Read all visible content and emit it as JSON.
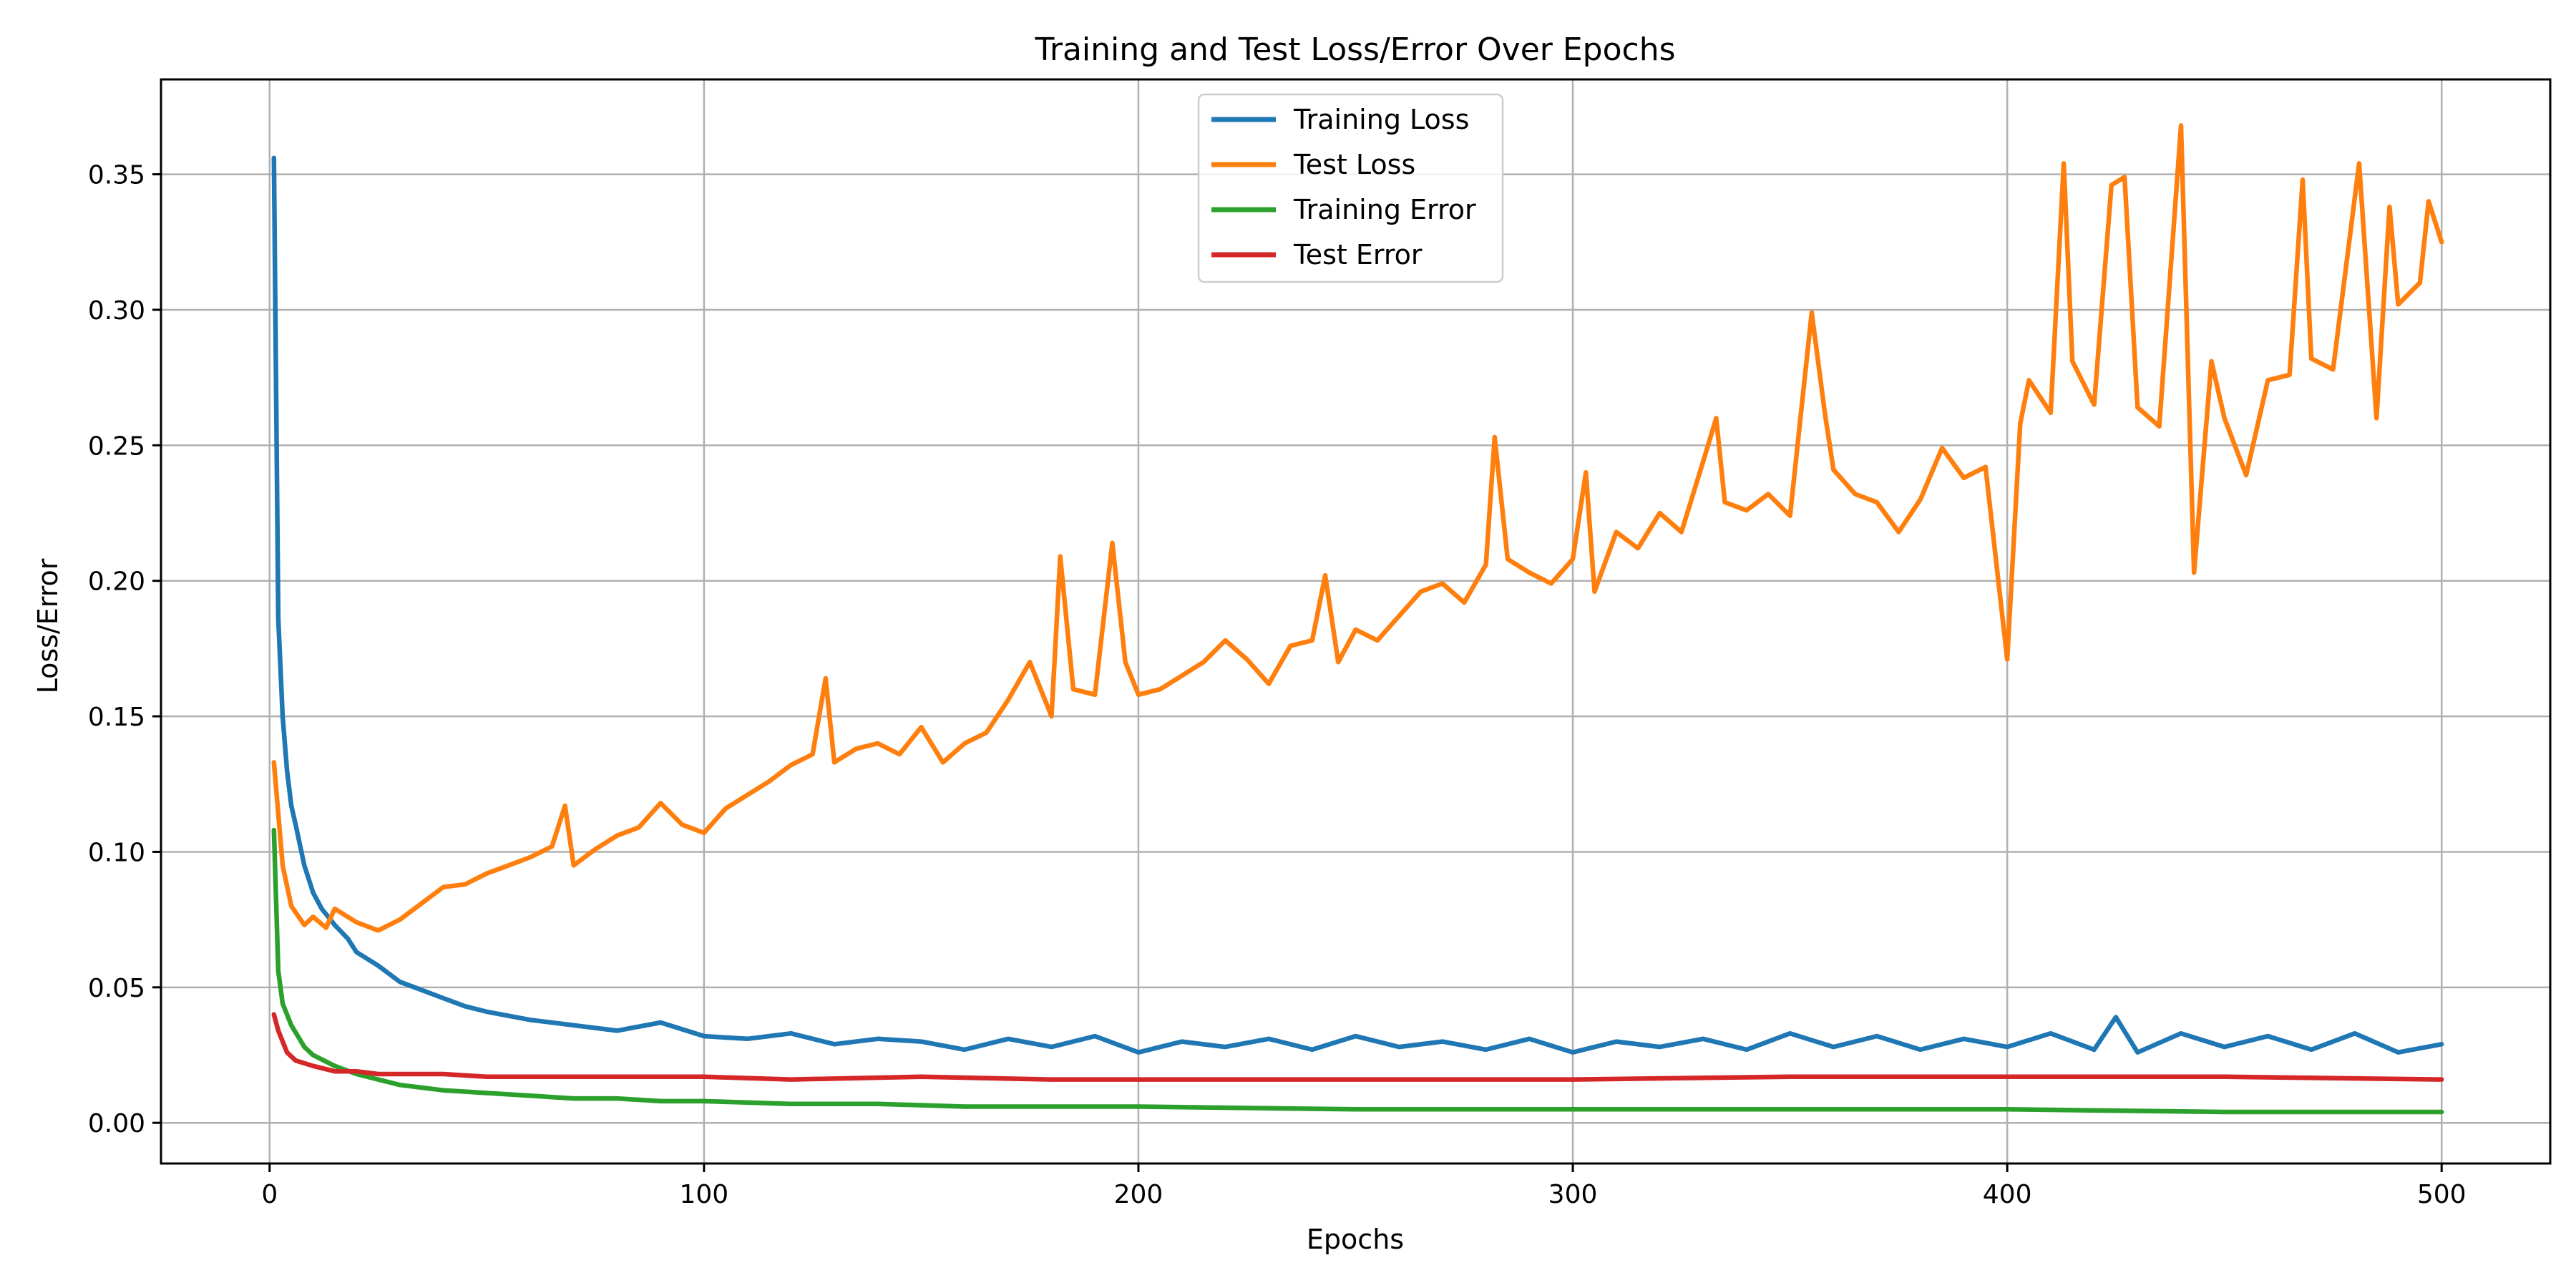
{
  "chart_data": {
    "type": "line",
    "title": "Training and Test Loss/Error Over Epochs",
    "xlabel": "Epochs",
    "ylabel": "Loss/Error",
    "xlim": [
      -25,
      525
    ],
    "ylim": [
      -0.015,
      0.385
    ],
    "xticks": [
      0,
      100,
      200,
      300,
      400,
      500
    ],
    "yticks": [
      0.0,
      0.05,
      0.1,
      0.15,
      0.2,
      0.25,
      0.3,
      0.35
    ],
    "ytick_labels": [
      "0.00",
      "0.05",
      "0.10",
      "0.15",
      "0.20",
      "0.25",
      "0.30",
      "0.35"
    ],
    "grid": true,
    "legend_position": "top-center",
    "series": [
      {
        "name": "Training Loss",
        "color": "#1f77b4",
        "points": [
          [
            1,
            0.356
          ],
          [
            2,
            0.186
          ],
          [
            3,
            0.15
          ],
          [
            4,
            0.13
          ],
          [
            5,
            0.117
          ],
          [
            6,
            0.11
          ],
          [
            8,
            0.095
          ],
          [
            10,
            0.085
          ],
          [
            12,
            0.079
          ],
          [
            15,
            0.073
          ],
          [
            18,
            0.068
          ],
          [
            20,
            0.063
          ],
          [
            25,
            0.058
          ],
          [
            30,
            0.052
          ],
          [
            35,
            0.049
          ],
          [
            40,
            0.046
          ],
          [
            45,
            0.043
          ],
          [
            50,
            0.041
          ],
          [
            60,
            0.038
          ],
          [
            70,
            0.036
          ],
          [
            80,
            0.034
          ],
          [
            90,
            0.037
          ],
          [
            100,
            0.032
          ],
          [
            110,
            0.031
          ],
          [
            120,
            0.033
          ],
          [
            130,
            0.029
          ],
          [
            140,
            0.031
          ],
          [
            150,
            0.03
          ],
          [
            160,
            0.027
          ],
          [
            170,
            0.031
          ],
          [
            180,
            0.028
          ],
          [
            190,
            0.032
          ],
          [
            200,
            0.026
          ],
          [
            210,
            0.03
          ],
          [
            220,
            0.028
          ],
          [
            230,
            0.031
          ],
          [
            240,
            0.027
          ],
          [
            250,
            0.032
          ],
          [
            260,
            0.028
          ],
          [
            270,
            0.03
          ],
          [
            280,
            0.027
          ],
          [
            290,
            0.031
          ],
          [
            300,
            0.026
          ],
          [
            310,
            0.03
          ],
          [
            320,
            0.028
          ],
          [
            330,
            0.031
          ],
          [
            340,
            0.027
          ],
          [
            350,
            0.033
          ],
          [
            360,
            0.028
          ],
          [
            370,
            0.032
          ],
          [
            380,
            0.027
          ],
          [
            390,
            0.031
          ],
          [
            400,
            0.028
          ],
          [
            410,
            0.033
          ],
          [
            420,
            0.027
          ],
          [
            425,
            0.039
          ],
          [
            430,
            0.026
          ],
          [
            440,
            0.033
          ],
          [
            450,
            0.028
          ],
          [
            460,
            0.032
          ],
          [
            470,
            0.027
          ],
          [
            480,
            0.033
          ],
          [
            490,
            0.026
          ],
          [
            500,
            0.029
          ]
        ]
      },
      {
        "name": "Test Loss",
        "color": "#ff7f0e",
        "points": [
          [
            1,
            0.133
          ],
          [
            3,
            0.095
          ],
          [
            5,
            0.08
          ],
          [
            8,
            0.073
          ],
          [
            10,
            0.076
          ],
          [
            13,
            0.072
          ],
          [
            15,
            0.079
          ],
          [
            20,
            0.074
          ],
          [
            25,
            0.071
          ],
          [
            30,
            0.075
          ],
          [
            35,
            0.081
          ],
          [
            40,
            0.087
          ],
          [
            45,
            0.088
          ],
          [
            50,
            0.092
          ],
          [
            55,
            0.095
          ],
          [
            60,
            0.098
          ],
          [
            65,
            0.102
          ],
          [
            68,
            0.117
          ],
          [
            70,
            0.095
          ],
          [
            75,
            0.101
          ],
          [
            80,
            0.106
          ],
          [
            85,
            0.109
          ],
          [
            90,
            0.118
          ],
          [
            95,
            0.11
          ],
          [
            100,
            0.107
          ],
          [
            105,
            0.116
          ],
          [
            110,
            0.121
          ],
          [
            115,
            0.126
          ],
          [
            120,
            0.132
          ],
          [
            125,
            0.136
          ],
          [
            128,
            0.164
          ],
          [
            130,
            0.133
          ],
          [
            135,
            0.138
          ],
          [
            140,
            0.14
          ],
          [
            145,
            0.136
          ],
          [
            150,
            0.146
          ],
          [
            155,
            0.133
          ],
          [
            160,
            0.14
          ],
          [
            165,
            0.144
          ],
          [
            170,
            0.156
          ],
          [
            175,
            0.17
          ],
          [
            180,
            0.15
          ],
          [
            182,
            0.209
          ],
          [
            185,
            0.16
          ],
          [
            190,
            0.158
          ],
          [
            194,
            0.214
          ],
          [
            197,
            0.17
          ],
          [
            200,
            0.158
          ],
          [
            205,
            0.16
          ],
          [
            210,
            0.165
          ],
          [
            215,
            0.17
          ],
          [
            220,
            0.178
          ],
          [
            225,
            0.171
          ],
          [
            230,
            0.162
          ],
          [
            235,
            0.176
          ],
          [
            240,
            0.178
          ],
          [
            243,
            0.202
          ],
          [
            246,
            0.17
          ],
          [
            250,
            0.182
          ],
          [
            255,
            0.178
          ],
          [
            260,
            0.187
          ],
          [
            265,
            0.196
          ],
          [
            270,
            0.199
          ],
          [
            275,
            0.192
          ],
          [
            280,
            0.206
          ],
          [
            282,
            0.253
          ],
          [
            285,
            0.208
          ],
          [
            290,
            0.203
          ],
          [
            295,
            0.199
          ],
          [
            300,
            0.208
          ],
          [
            303,
            0.24
          ],
          [
            305,
            0.196
          ],
          [
            310,
            0.218
          ],
          [
            315,
            0.212
          ],
          [
            320,
            0.225
          ],
          [
            325,
            0.218
          ],
          [
            330,
            0.244
          ],
          [
            333,
            0.26
          ],
          [
            335,
            0.229
          ],
          [
            340,
            0.226
          ],
          [
            345,
            0.232
          ],
          [
            350,
            0.224
          ],
          [
            355,
            0.299
          ],
          [
            358,
            0.262
          ],
          [
            360,
            0.241
          ],
          [
            365,
            0.232
          ],
          [
            370,
            0.229
          ],
          [
            375,
            0.218
          ],
          [
            380,
            0.23
          ],
          [
            385,
            0.249
          ],
          [
            390,
            0.238
          ],
          [
            395,
            0.242
          ],
          [
            400,
            0.171
          ],
          [
            403,
            0.258
          ],
          [
            405,
            0.274
          ],
          [
            410,
            0.262
          ],
          [
            413,
            0.354
          ],
          [
            415,
            0.281
          ],
          [
            420,
            0.265
          ],
          [
            424,
            0.346
          ],
          [
            427,
            0.349
          ],
          [
            430,
            0.264
          ],
          [
            435,
            0.257
          ],
          [
            440,
            0.368
          ],
          [
            443,
            0.203
          ],
          [
            447,
            0.281
          ],
          [
            450,
            0.26
          ],
          [
            455,
            0.239
          ],
          [
            460,
            0.274
          ],
          [
            465,
            0.276
          ],
          [
            468,
            0.348
          ],
          [
            470,
            0.282
          ],
          [
            475,
            0.278
          ],
          [
            481,
            0.354
          ],
          [
            485,
            0.26
          ],
          [
            488,
            0.338
          ],
          [
            490,
            0.302
          ],
          [
            495,
            0.31
          ],
          [
            497,
            0.34
          ],
          [
            500,
            0.325
          ]
        ]
      },
      {
        "name": "Training Error",
        "color": "#2ca02c",
        "points": [
          [
            1,
            0.108
          ],
          [
            2,
            0.056
          ],
          [
            3,
            0.044
          ],
          [
            5,
            0.036
          ],
          [
            8,
            0.028
          ],
          [
            10,
            0.025
          ],
          [
            15,
            0.021
          ],
          [
            20,
            0.018
          ],
          [
            25,
            0.016
          ],
          [
            30,
            0.014
          ],
          [
            40,
            0.012
          ],
          [
            50,
            0.011
          ],
          [
            60,
            0.01
          ],
          [
            70,
            0.009
          ],
          [
            80,
            0.009
          ],
          [
            90,
            0.008
          ],
          [
            100,
            0.008
          ],
          [
            120,
            0.007
          ],
          [
            140,
            0.007
          ],
          [
            160,
            0.006
          ],
          [
            180,
            0.006
          ],
          [
            200,
            0.006
          ],
          [
            250,
            0.005
          ],
          [
            300,
            0.005
          ],
          [
            350,
            0.005
          ],
          [
            400,
            0.005
          ],
          [
            450,
            0.004
          ],
          [
            500,
            0.004
          ]
        ]
      },
      {
        "name": "Test Error",
        "color": "#d62728",
        "points": [
          [
            1,
            0.04
          ],
          [
            2,
            0.034
          ],
          [
            4,
            0.026
          ],
          [
            6,
            0.023
          ],
          [
            10,
            0.021
          ],
          [
            15,
            0.019
          ],
          [
            20,
            0.019
          ],
          [
            25,
            0.018
          ],
          [
            30,
            0.018
          ],
          [
            40,
            0.018
          ],
          [
            50,
            0.017
          ],
          [
            60,
            0.017
          ],
          [
            80,
            0.017
          ],
          [
            100,
            0.017
          ],
          [
            120,
            0.016
          ],
          [
            150,
            0.017
          ],
          [
            180,
            0.016
          ],
          [
            200,
            0.016
          ],
          [
            250,
            0.016
          ],
          [
            300,
            0.016
          ],
          [
            350,
            0.017
          ],
          [
            400,
            0.017
          ],
          [
            450,
            0.017
          ],
          [
            500,
            0.016
          ]
        ]
      }
    ]
  }
}
